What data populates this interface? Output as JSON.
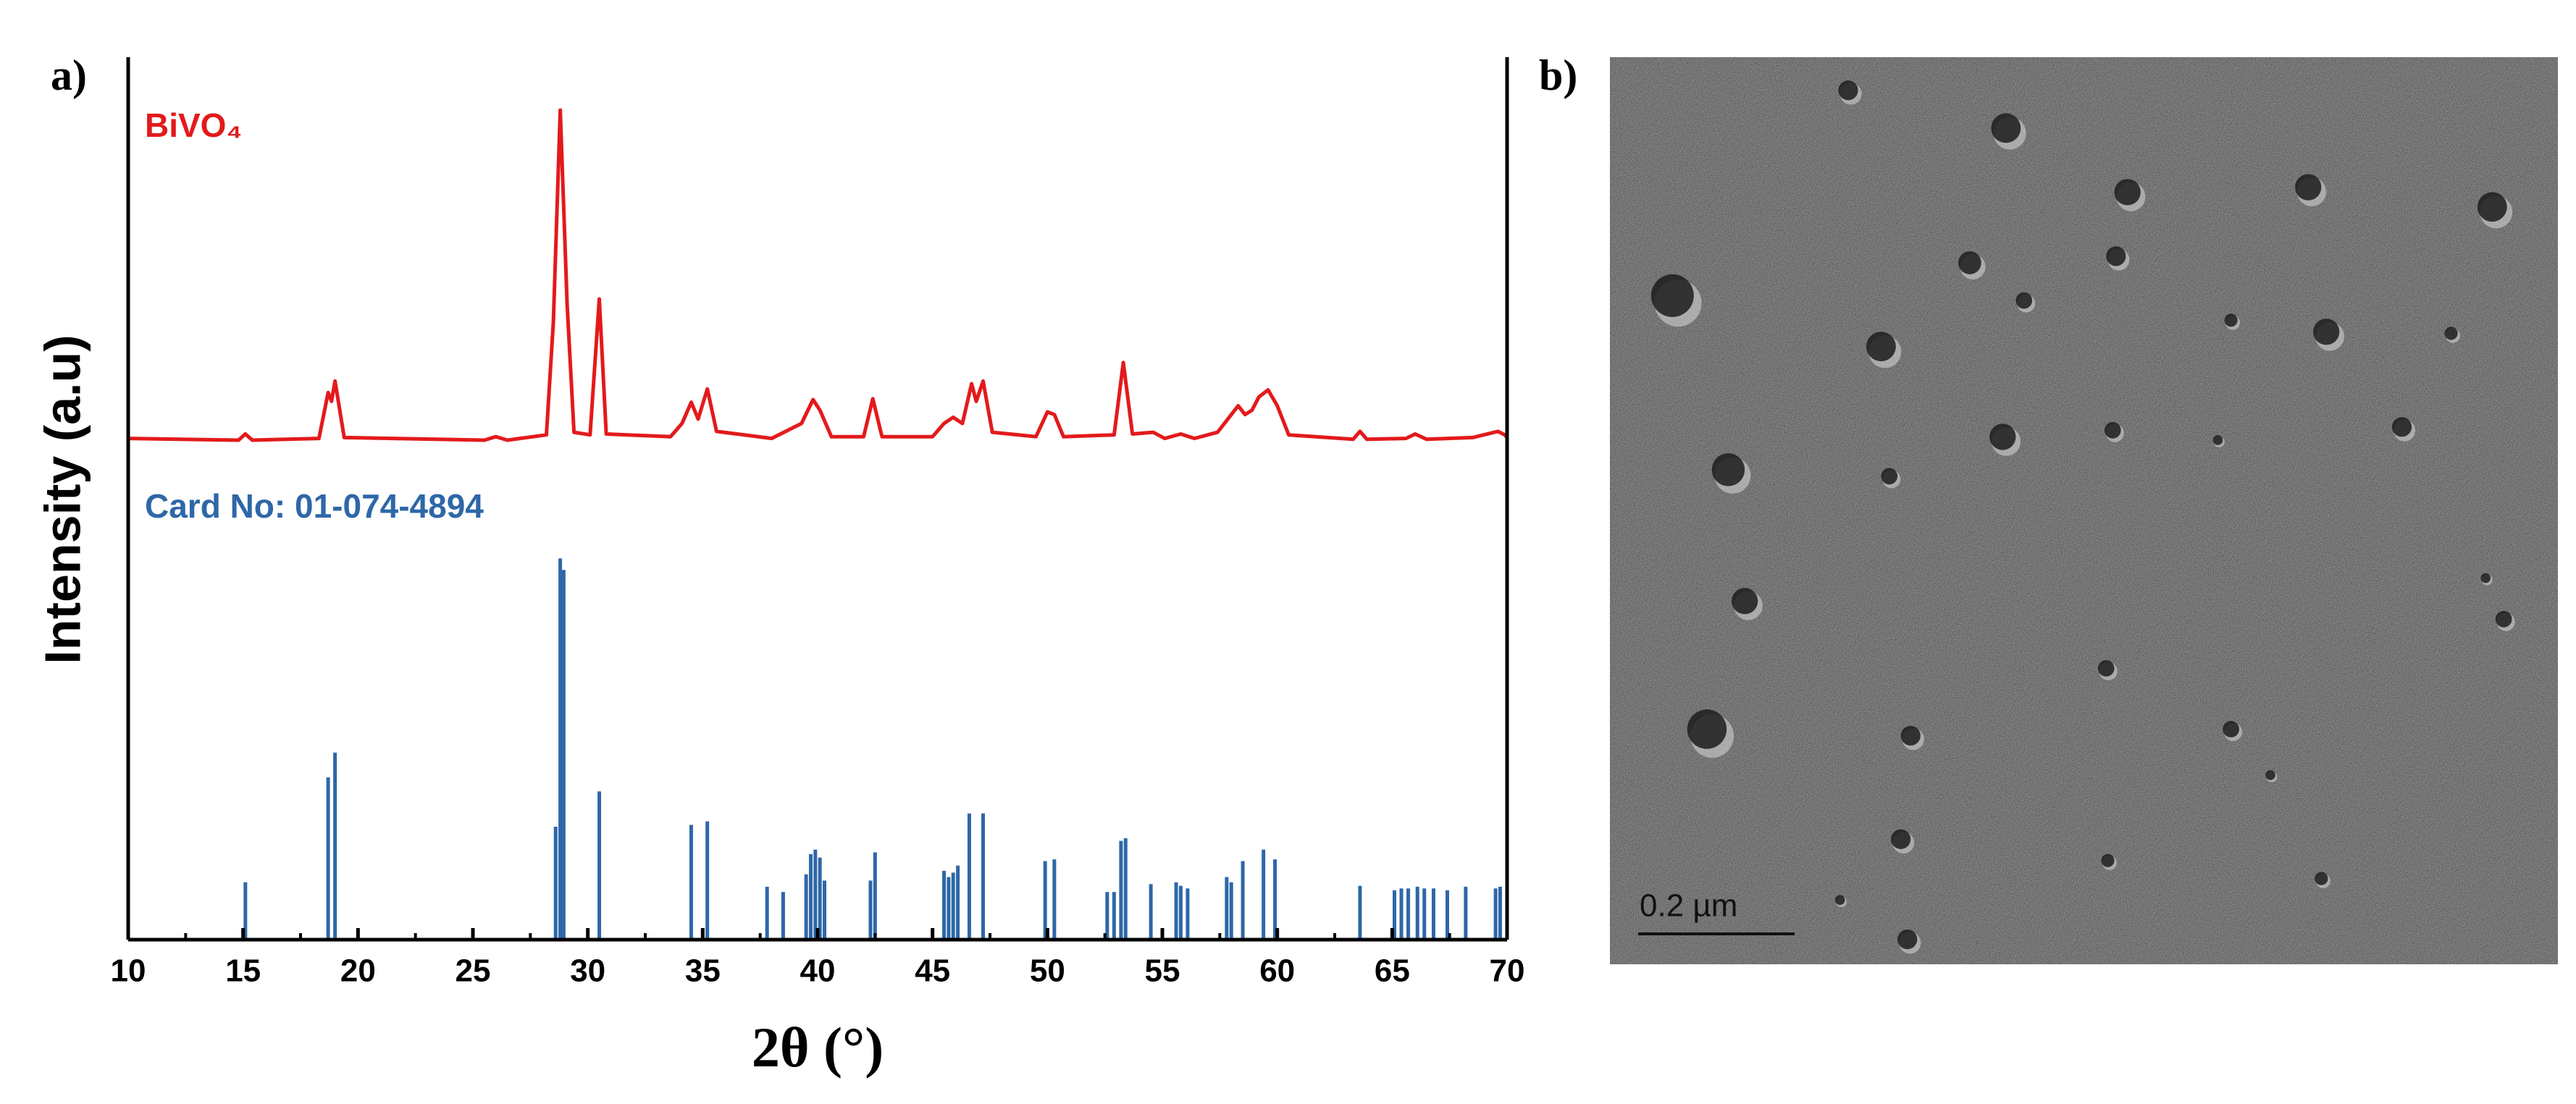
{
  "chart_data": {
    "type": "line",
    "panel_labels": [
      "a)",
      "b)"
    ],
    "xlabel": "2θ (°)",
    "ylabel": "Intensity (a.u)",
    "xlim": [
      10,
      70
    ],
    "xticks": [
      10,
      15,
      20,
      25,
      30,
      35,
      40,
      45,
      50,
      55,
      60,
      65,
      70
    ],
    "xminorticks": [
      12.5,
      17.5,
      22.5,
      27.5,
      32.5,
      37.5,
      42.5,
      47.5,
      52.5,
      57.5,
      62.5,
      67.5
    ],
    "ylim": [
      0,
      100
    ],
    "series": [
      {
        "name": "BiVO₄",
        "color": "#e31a1c",
        "type": "line",
        "x": [
          10,
          14.8,
          15.1,
          15.4,
          18.3,
          18.7,
          18.85,
          19.0,
          19.4,
          25.5,
          26,
          26.5,
          28.2,
          28.5,
          28.8,
          29.1,
          29.4,
          30.1,
          30.5,
          30.8,
          33.6,
          34.1,
          34.5,
          34.8,
          35.2,
          35.6,
          38,
          39.3,
          39.8,
          40.1,
          40.6,
          42.0,
          42.4,
          42.8,
          45,
          45.5,
          45.9,
          46.3,
          46.7,
          46.9,
          47.2,
          47.6,
          49.5,
          50.0,
          50.3,
          50.7,
          52.9,
          53.3,
          53.7,
          54.6,
          55.1,
          55.8,
          56.4,
          57.4,
          58.0,
          58.3,
          58.6,
          58.9,
          59.2,
          59.6,
          60.0,
          60.5,
          63.3,
          63.6,
          63.9,
          65.6,
          66.0,
          66.5,
          68.5,
          69.6,
          69.9,
          70
        ],
        "values": [
          56.8,
          56.6,
          57.3,
          56.6,
          56.8,
          62,
          61,
          63.3,
          56.9,
          56.6,
          57,
          56.6,
          57.2,
          70,
          94,
          72,
          57.5,
          57.2,
          72.6,
          57.3,
          57,
          58.5,
          60.9,
          59,
          62.4,
          57.6,
          56.8,
          58.5,
          61.2,
          60,
          57,
          57,
          61.3,
          57,
          57,
          58.5,
          59.2,
          58.5,
          63,
          61,
          63.3,
          57.5,
          57,
          59.8,
          59.5,
          57,
          57.2,
          65.4,
          57.3,
          57.5,
          56.8,
          57.3,
          56.8,
          57.5,
          59.5,
          60.5,
          59.5,
          60,
          61.5,
          62.3,
          60.5,
          57.2,
          56.7,
          57.6,
          56.7,
          56.8,
          57.3,
          56.7,
          56.9,
          57.6,
          57.2,
          56.9
        ]
      },
      {
        "name": "Card No: 01-074-4894",
        "color": "#2e67a8",
        "type": "stem",
        "x": [
          15.1,
          18.7,
          19.0,
          28.6,
          28.8,
          28.95,
          30.5,
          34.5,
          35.2,
          37.8,
          38.5,
          39.5,
          39.7,
          39.9,
          40.1,
          40.3,
          42.3,
          42.5,
          45.5,
          45.7,
          45.9,
          46.1,
          46.6,
          47.2,
          49.9,
          50.3,
          52.6,
          52.9,
          53.2,
          53.4,
          54.5,
          55.6,
          55.8,
          56.1,
          57.8,
          58.0,
          58.5,
          59.4,
          59.9,
          63.6,
          65.1,
          65.4,
          65.7,
          66.1,
          66.4,
          66.8,
          67.4,
          68.2,
          69.5,
          69.7
        ],
        "values": [
          6.5,
          18.4,
          21.2,
          12.8,
          43.2,
          41.9,
          16.8,
          13.0,
          13.4,
          6.0,
          5.4,
          7.4,
          9.7,
          10.2,
          9.3,
          6.7,
          6.7,
          9.9,
          7.8,
          7.1,
          7.6,
          8.4,
          14.3,
          14.3,
          8.9,
          9.1,
          5.4,
          5.4,
          11.2,
          11.5,
          6.3,
          6.5,
          6.1,
          5.8,
          7.1,
          6.5,
          8.9,
          10.2,
          9.1,
          6.1,
          5.6,
          5.8,
          5.8,
          6.0,
          5.8,
          5.8,
          5.6,
          6.0,
          5.8,
          6.0
        ]
      }
    ]
  },
  "image": {
    "scale_bar": "0.2 µm"
  }
}
